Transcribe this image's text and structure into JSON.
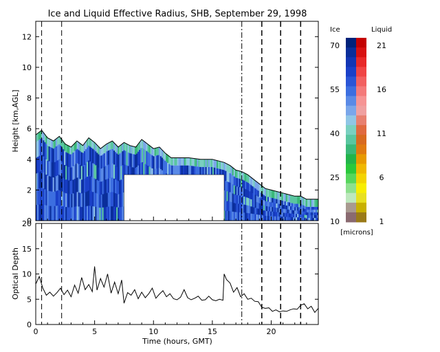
{
  "chart_data": [
    {
      "type": "heatmap",
      "title": "Ice and Liquid Effective Radius, SHB, September 29, 1998",
      "ylabel": "Height [km,AGL]",
      "xlim": [
        0,
        24
      ],
      "ylim": [
        0,
        13
      ],
      "y_ticks": [
        "0",
        "2",
        "4",
        "6",
        "8",
        "10",
        "12"
      ],
      "cloud_top_km": [
        [
          0,
          5.6
        ],
        [
          0.5,
          5.9
        ],
        [
          1,
          5.4
        ],
        [
          1.5,
          5.2
        ],
        [
          2,
          5.5
        ],
        [
          2.5,
          5.0
        ],
        [
          3,
          4.8
        ],
        [
          3.5,
          5.2
        ],
        [
          4,
          4.9
        ],
        [
          4.5,
          5.4
        ],
        [
          5,
          5.1
        ],
        [
          5.5,
          4.7
        ],
        [
          6,
          5.0
        ],
        [
          6.5,
          5.2
        ],
        [
          7,
          4.8
        ],
        [
          7.5,
          5.1
        ],
        [
          8,
          4.9
        ],
        [
          8.5,
          4.8
        ],
        [
          9,
          5.3
        ],
        [
          9.5,
          5.0
        ],
        [
          10,
          4.7
        ],
        [
          10.5,
          4.8
        ],
        [
          11,
          4.4
        ],
        [
          11.5,
          4.1
        ],
        [
          12,
          4.1
        ],
        [
          13,
          4.1
        ],
        [
          14,
          4.0
        ],
        [
          15,
          4.0
        ],
        [
          16,
          3.8
        ],
        [
          16.5,
          3.6
        ],
        [
          17,
          3.3
        ],
        [
          17.5,
          3.2
        ],
        [
          18,
          3.0
        ],
        [
          18.5,
          2.7
        ],
        [
          19,
          2.4
        ],
        [
          19.5,
          2.1
        ],
        [
          20,
          2.0
        ],
        [
          20.5,
          1.9
        ],
        [
          21,
          1.8
        ],
        [
          21.5,
          1.7
        ],
        [
          22,
          1.6
        ],
        [
          22.5,
          1.6
        ],
        [
          23,
          1.4
        ],
        [
          24,
          1.4
        ]
      ],
      "missing_block": {
        "x": [
          7.5,
          16.0
        ],
        "y": [
          0,
          3.0
        ]
      },
      "colorbar": {
        "ice_label": "Ice",
        "liquid_label": "Liquid",
        "ice_ticks": [
          "70",
          "55",
          "40",
          "25",
          "10"
        ],
        "liquid_ticks": [
          "21",
          "16",
          "11",
          "6",
          "1"
        ],
        "units": "[microns]",
        "ice_colors": [
          "#00227a",
          "#0a2e9a",
          "#1236b4",
          "#1a40c8",
          "#2a55d6",
          "#3c6ee0",
          "#5a8ae6",
          "#7aa6ea",
          "#90c6e6",
          "#7ad0c0",
          "#5ac6a0",
          "#3ab878",
          "#22b44a",
          "#2ac83c",
          "#56d65c",
          "#8ee08e",
          "#bde8bd",
          "#a89a90",
          "#8a6a70"
        ],
        "liquid_colors": [
          "#c40000",
          "#d81010",
          "#e82828",
          "#f04444",
          "#f26060",
          "#f47a7a",
          "#f69494",
          "#f0a0a0",
          "#e88070",
          "#e06a40",
          "#d86a20",
          "#e07a10",
          "#e89a00",
          "#f0b800",
          "#f4d400",
          "#f8ee00",
          "#e8e020",
          "#c8b000",
          "#9a7a18"
        ]
      },
      "vertical_lines": [
        0.5,
        2.2,
        17.5,
        19.2,
        20.8,
        22.5
      ]
    },
    {
      "type": "line",
      "xlabel": "Time (hours, GMT)",
      "ylabel": "Optical Depth",
      "xlim": [
        0,
        24
      ],
      "ylim": [
        0,
        20
      ],
      "x_ticks": [
        "0",
        "5",
        "10",
        "15",
        "20"
      ],
      "y_ticks": [
        "0",
        "5",
        "10",
        "15",
        "20"
      ],
      "series": [
        {
          "x": [
            0,
            0.3,
            0.6,
            0.9,
            1.2,
            1.5,
            1.8,
            2.1,
            2.4,
            2.7,
            3.0,
            3.3,
            3.6,
            3.9,
            4.2,
            4.5,
            4.8,
            5.0,
            5.2,
            5.5,
            5.8,
            6.1,
            6.4,
            6.7,
            7.0,
            7.3,
            7.5,
            7.8,
            8.1,
            8.4,
            8.7,
            9.0,
            9.3,
            9.6,
            9.9,
            10.2,
            10.5,
            10.8,
            11.1,
            11.4,
            11.7,
            12.0,
            12.3,
            12.6,
            12.9,
            13.2,
            13.5,
            13.8,
            14.1,
            14.4,
            14.7,
            15.0,
            15.3,
            15.6,
            15.9,
            16.0,
            16.2,
            16.5,
            16.8,
            17.1,
            17.4,
            17.7,
            18.0,
            18.3,
            18.6,
            18.9,
            19.2,
            19.5,
            19.8,
            20.1,
            20.4,
            20.7,
            21.0,
            21.3,
            21.6,
            21.9,
            22.2,
            22.5,
            22.8,
            23.1,
            23.4,
            23.7,
            24.0
          ],
          "values": [
            8.0,
            9.5,
            7.2,
            5.8,
            6.4,
            5.6,
            6.3,
            7.2,
            5.9,
            6.8,
            5.5,
            7.8,
            6.2,
            9.3,
            6.9,
            7.9,
            6.5,
            11.5,
            6.8,
            9.1,
            7.4,
            10.0,
            6.2,
            8.4,
            6.1,
            8.8,
            4.2,
            6.3,
            5.8,
            6.9,
            5.1,
            6.4,
            5.3,
            6.1,
            7.2,
            5.2,
            6.0,
            6.7,
            5.5,
            6.1,
            5.1,
            4.9,
            5.4,
            6.9,
            5.3,
            4.9,
            5.2,
            5.6,
            4.8,
            4.9,
            5.6,
            4.9,
            4.7,
            5.0,
            4.8,
            10.0,
            8.9,
            8.2,
            6.4,
            7.3,
            5.5,
            6.1,
            5.0,
            5.2,
            4.6,
            4.5,
            3.4,
            3.2,
            3.3,
            2.6,
            2.9,
            2.5,
            2.7,
            2.6,
            2.9,
            3.1,
            3.0,
            3.8,
            4.1,
            3.1,
            3.6,
            2.4,
            3.2
          ]
        }
      ],
      "vertical_lines": [
        0.5,
        2.2,
        17.5,
        19.2,
        20.8,
        22.5
      ]
    }
  ]
}
